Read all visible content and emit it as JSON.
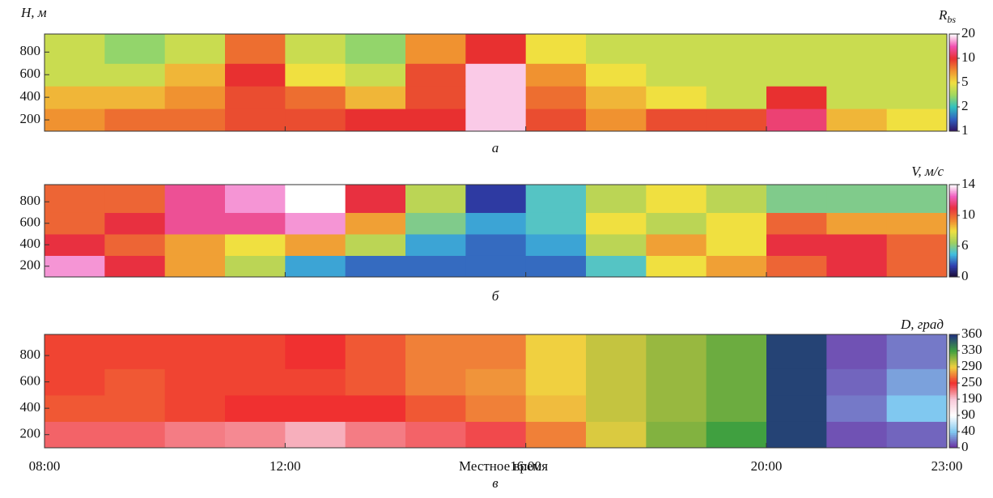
{
  "chart_data": [
    {
      "type": "heatmap",
      "ylabel": "H, м",
      "colorbar_label": "R",
      "colorbar_sub": "bs",
      "panel_label": "а",
      "x": [
        8,
        9,
        10,
        11,
        12,
        13,
        14,
        15,
        16,
        17,
        18,
        19,
        20,
        21,
        22,
        23
      ],
      "y": [
        100,
        300,
        500,
        700,
        960
      ],
      "values": [
        [
          7,
          8,
          8,
          9,
          9,
          10,
          10,
          18,
          9,
          7,
          9,
          9,
          12,
          6,
          5
        ],
        [
          6,
          6,
          7,
          9,
          8,
          6,
          9,
          18,
          8,
          6,
          5,
          4,
          10,
          4,
          4
        ],
        [
          4,
          4,
          6,
          10,
          5,
          4,
          9,
          18,
          7,
          5,
          4,
          4,
          4,
          4,
          4
        ],
        [
          4,
          3,
          4,
          8,
          4,
          3,
          7,
          10,
          5,
          4,
          4,
          4,
          4,
          4,
          4
        ]
      ],
      "xlim": [
        8,
        23
      ],
      "ylim": [
        100,
        960
      ],
      "yticks": [
        200,
        400,
        600,
        800
      ],
      "cticks": [
        1,
        2,
        5,
        10,
        20
      ],
      "log_scale": true,
      "colormap": [
        "#301060",
        "#3060c0",
        "#30c0c0",
        "#a0d860",
        "#f0e040",
        "#f09030",
        "#e83030",
        "#f050b0",
        "#ffffff"
      ]
    },
    {
      "type": "heatmap",
      "colorbar_label": "V, м/с",
      "panel_label": "б",
      "x": [
        8,
        9,
        10,
        11,
        12,
        13,
        14,
        15,
        16,
        17,
        18,
        19,
        20,
        21,
        22,
        23
      ],
      "y": [
        100,
        300,
        500,
        700,
        960
      ],
      "values": [
        [
          13,
          11,
          9,
          7,
          4,
          3,
          3,
          3,
          3,
          5,
          8,
          9,
          10,
          11,
          10
        ],
        [
          11,
          10,
          9,
          8,
          9,
          7,
          4,
          3,
          4,
          7,
          9,
          8,
          11,
          11,
          10
        ],
        [
          10,
          11,
          12,
          12,
          13,
          9,
          6,
          4,
          5,
          8,
          7,
          8,
          10,
          9,
          9
        ],
        [
          10,
          10,
          12,
          13,
          14,
          11,
          7,
          2,
          5,
          7,
          8,
          7,
          6,
          6,
          6
        ]
      ],
      "xlim": [
        8,
        23
      ],
      "ylim": [
        100,
        960
      ],
      "yticks": [
        200,
        400,
        600,
        800
      ],
      "cticks": [
        0,
        6,
        10,
        14
      ],
      "colormap": [
        "#1a0830",
        "#3040b0",
        "#40c0e0",
        "#a0d060",
        "#f0e040",
        "#f08030",
        "#e83040",
        "#f060c0",
        "#ffffff"
      ]
    },
    {
      "type": "heatmap",
      "colorbar_label": "D, град",
      "panel_label": "в",
      "xlabel": "Местное время",
      "x": [
        8,
        9,
        10,
        11,
        12,
        13,
        14,
        15,
        16,
        17,
        18,
        19,
        20,
        21,
        22,
        23
      ],
      "y": [
        100,
        300,
        500,
        700,
        960
      ],
      "values": [
        [
          230,
          230,
          220,
          215,
          200,
          220,
          230,
          240,
          270,
          295,
          315,
          330,
          355,
          10,
          15
        ],
        [
          260,
          260,
          255,
          250,
          250,
          250,
          260,
          270,
          285,
          300,
          310,
          320,
          355,
          20,
          40
        ],
        [
          255,
          260,
          255,
          255,
          255,
          260,
          270,
          275,
          290,
          300,
          310,
          320,
          355,
          15,
          30
        ],
        [
          255,
          255,
          255,
          255,
          250,
          260,
          270,
          270,
          290,
          300,
          310,
          320,
          355,
          10,
          20
        ]
      ],
      "xlim": [
        8,
        23
      ],
      "ylim": [
        100,
        960
      ],
      "yticks": [
        200,
        400,
        600,
        800
      ],
      "xticks": [
        {
          "value": 8,
          "label": "08:00"
        },
        {
          "value": 12,
          "label": "12:00"
        },
        {
          "value": 16,
          "label": "16:00"
        },
        {
          "value": 20,
          "label": "20:00"
        },
        {
          "value": 23,
          "label": "23:00"
        }
      ],
      "cticks": [
        0,
        40,
        90,
        190,
        250,
        290,
        330,
        360
      ],
      "colormap": [
        "#6a2aa0",
        "#80c8f0",
        "#ffffff",
        "#f8c8d8",
        "#f03030",
        "#f0d040",
        "#40a040",
        "#203080"
      ]
    }
  ]
}
